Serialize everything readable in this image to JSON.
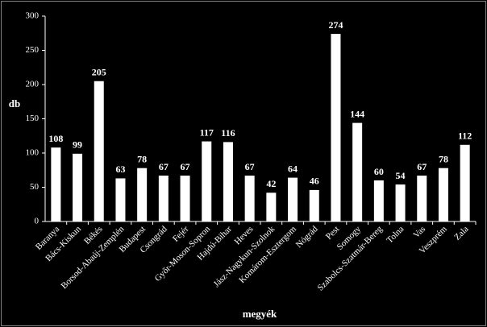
{
  "chart_data": {
    "type": "bar",
    "categories": [
      "Baranya",
      "Bács-Kiskun",
      "Békés",
      "Borsod-Abaúj-Zemplén",
      "Budapest",
      "Csongrád",
      "Fejér",
      "Győr-Moson-Sopron",
      "Hajdú-Bihar",
      "Heves",
      "Jász-Nagykun-Szolnok",
      "Komárom-Esztergom",
      "Nógrád",
      "Pest",
      "Somogy",
      "Szabolcs-Szatmár-Bereg",
      "Tolna",
      "Vas",
      "Veszprém",
      "Zala"
    ],
    "values": [
      108,
      99,
      205,
      63,
      78,
      67,
      67,
      117,
      116,
      67,
      42,
      64,
      46,
      274,
      144,
      60,
      54,
      67,
      78,
      112
    ],
    "color": "#ffffff",
    "ylim": [
      0,
      300
    ],
    "yticks": [
      0,
      50,
      100,
      150,
      200,
      250,
      300
    ],
    "y_label": "db",
    "x_label": "megyék"
  }
}
